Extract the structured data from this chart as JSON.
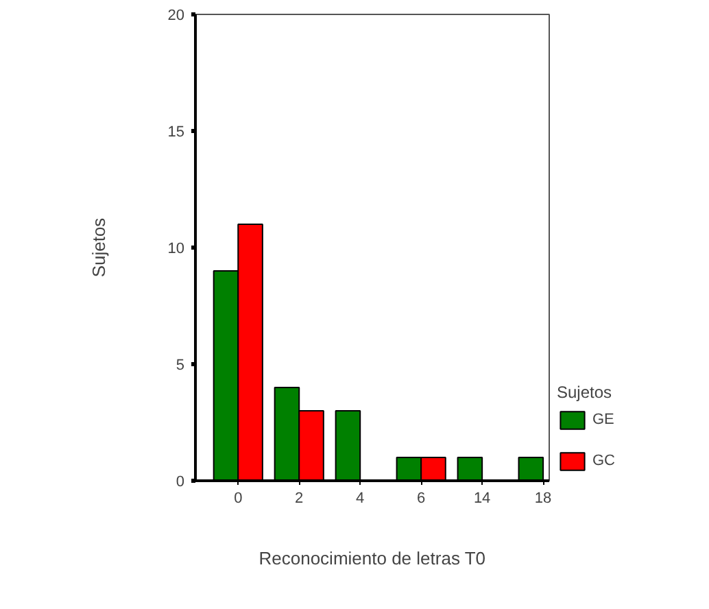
{
  "chart_data": {
    "type": "bar",
    "xlabel": "Reconocimiento de letras T0",
    "ylabel": "Sujetos",
    "legend_title": "Sujetos",
    "categories": [
      "0",
      "2",
      "4",
      "6",
      "14",
      "18"
    ],
    "series": [
      {
        "name": "GE",
        "color": "#008000",
        "values": [
          9,
          4,
          3,
          1,
          1,
          1
        ]
      },
      {
        "name": "GC",
        "color": "#ff0000",
        "values": [
          11,
          3,
          null,
          1,
          null,
          null
        ]
      }
    ],
    "ylim": [
      0,
      20
    ],
    "yticks": [
      0,
      5,
      10,
      15,
      20
    ],
    "legend": "right"
  }
}
